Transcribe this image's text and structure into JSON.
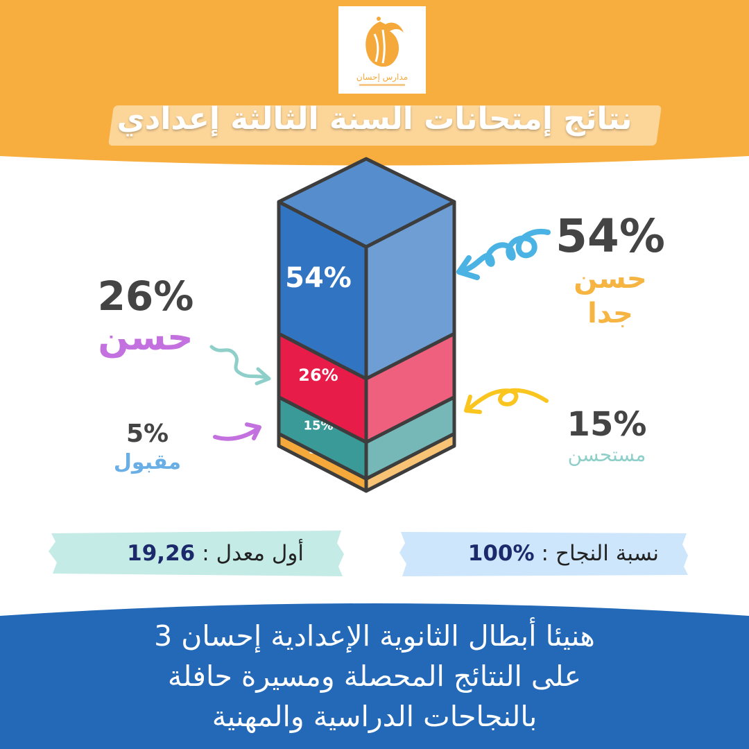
{
  "header": {
    "title": "نتائج إمتحانات السنة الثالثة إعدادي",
    "logo_text": "مدارس إحسان"
  },
  "chart_data": {
    "type": "bar",
    "style": "stacked-3d-column",
    "categories": [
      "مقبول",
      "مستحسن",
      "حسن",
      "حسن جدا"
    ],
    "values": [
      5,
      15,
      26,
      54
    ],
    "unit": "%",
    "value_labels": [
      "5%",
      "15%",
      "26%",
      "54%"
    ],
    "colors": [
      "#f6a93b",
      "#3a9a98",
      "#e81c48",
      "#3074c2"
    ]
  },
  "stats": {
    "very_good": {
      "value": "54%",
      "label": "حسن جدا"
    },
    "good": {
      "value": "26%",
      "label": "حسن"
    },
    "fairly_good": {
      "value": "15%",
      "label": "مستحسن"
    },
    "pass": {
      "value": "5%",
      "label": "مقبول"
    }
  },
  "summary": {
    "success_rate_label": "نسبة النجاح",
    "success_rate_value": "100%",
    "top_average_label": "أول معدل",
    "top_average_value": "19,26",
    "separator": ":"
  },
  "footer": {
    "lines": [
      "هنيئا أبطال الثانوية الإعدادية إحسان 3",
      "على النتائج المحصلة ومسيرة حافلة",
      "بالنجاحات الدراسية والمهنية"
    ]
  },
  "colors": {
    "orange": "#f8ad3f",
    "blue_band": "#2369b8",
    "purple": "#c471e0",
    "teal": "#8ecfc9",
    "light_blue": "#6aaee6",
    "pill_green": "#c4ebe6",
    "pill_blue": "#cde6fb"
  }
}
